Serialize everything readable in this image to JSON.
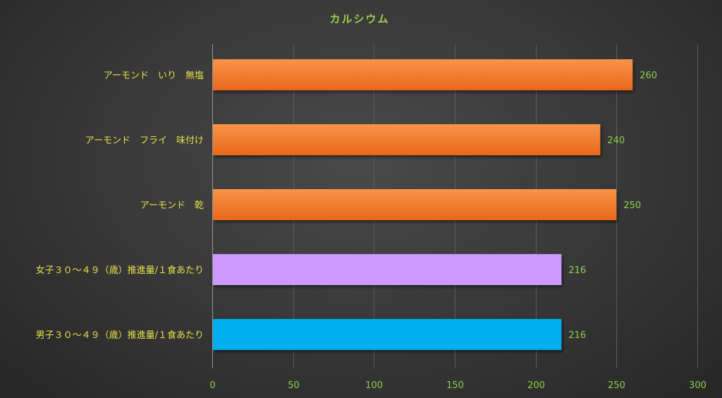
{
  "chart_data": {
    "type": "bar",
    "orientation": "horizontal",
    "title": "カルシウム",
    "categories": [
      "アーモンド　いり　無塩",
      "アーモンド　フライ　味付け",
      "アーモンド　乾",
      "女子３０～４９（歳）推進量/１食あたり",
      "男子３０～４９（歳）推進量/１食あたり"
    ],
    "values": [
      260,
      240,
      250,
      216,
      216
    ],
    "bar_colors": [
      "#f07a2c",
      "#f07a2c",
      "#f07a2c",
      "#cc99ff",
      "#00aeef"
    ],
    "xlim": [
      0,
      300
    ],
    "xticks": [
      0,
      50,
      100,
      150,
      200,
      250,
      300
    ],
    "grid": true,
    "legend": "none"
  }
}
